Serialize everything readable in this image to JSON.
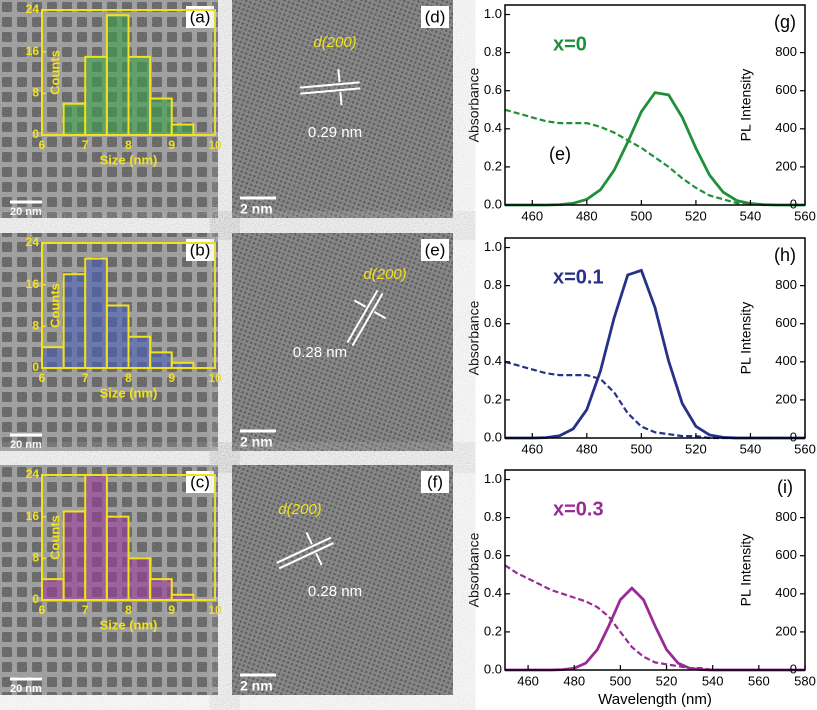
{
  "chart_data": [
    {
      "type": "histogram",
      "panel_label": "(a)",
      "scale_bar": "20 nm",
      "xlabel": "Size (nm)",
      "ylabel": "Counts",
      "bins": [
        6.5,
        7,
        7.5,
        8,
        8.5,
        9,
        9.5
      ],
      "values": [
        6,
        15,
        23,
        15,
        7,
        2
      ],
      "color": "#3aa04a",
      "edge_color": "#f2e21e",
      "xlim": [
        6,
        10
      ],
      "xticks": [
        6,
        7,
        8,
        9,
        10
      ],
      "ylim": [
        0,
        24
      ],
      "yticks": [
        0,
        8,
        16,
        24
      ]
    },
    {
      "type": "histogram",
      "panel_label": "(b)",
      "scale_bar": "20 nm",
      "xlabel": "Size (nm)",
      "ylabel": "Counts",
      "bins": [
        6,
        6.5,
        7,
        7.5,
        8,
        8.5,
        9,
        9.5
      ],
      "values": [
        4,
        18,
        21,
        12,
        6,
        3,
        1
      ],
      "color": "#4a5fb8",
      "edge_color": "#f2e21e",
      "xlim": [
        6,
        10
      ],
      "xticks": [
        6,
        7,
        8,
        9,
        10
      ],
      "ylim": [
        0,
        24
      ],
      "yticks": [
        0,
        8,
        16,
        24
      ]
    },
    {
      "type": "histogram",
      "panel_label": "(c)",
      "scale_bar": "20 nm",
      "xlabel": "Size (nm)",
      "ylabel": "Counts",
      "bins": [
        6,
        6.5,
        7,
        7.5,
        8,
        8.5,
        9,
        9.5
      ],
      "values": [
        4,
        17,
        24,
        16,
        8,
        4,
        1
      ],
      "color": "#9a3a9a",
      "edge_color": "#f2e21e",
      "xlim": [
        6,
        10
      ],
      "xticks": [
        6,
        7,
        8,
        9,
        10
      ],
      "ylim": [
        0,
        24
      ],
      "yticks": [
        0,
        8,
        16,
        24
      ]
    },
    {
      "type": "line",
      "panel_label": "(g)",
      "inset_label": "(e)",
      "annotation": "x=0",
      "color": "#1f8f3a",
      "ylabel": "Absorbance",
      "y2label": "PL Intensity",
      "x": [
        450,
        455,
        460,
        465,
        470,
        475,
        480,
        485,
        490,
        495,
        500,
        505,
        510,
        515,
        520,
        525,
        530,
        535,
        540,
        545,
        550,
        555,
        560
      ],
      "series": [
        {
          "color": "#1f8f3a",
          "dashed": true,
          "values": [
            0.5,
            0.48,
            0.46,
            0.44,
            0.43,
            0.43,
            0.43,
            0.41,
            0.38,
            0.34,
            0.3,
            0.25,
            0.2,
            0.14,
            0.09,
            0.05,
            0.03,
            0.01,
            0.01,
            0,
            0,
            0,
            0
          ]
        },
        {
          "color": "#1f8f3a",
          "dashed": false,
          "axis": "y2",
          "values": [
            0,
            0,
            0,
            0,
            2,
            9,
            30,
            80,
            182,
            330,
            490,
            590,
            578,
            460,
            298,
            157,
            67,
            23,
            7,
            2,
            0,
            0,
            0
          ]
        }
      ],
      "xlim": [
        450,
        560
      ],
      "xticks": [
        460,
        480,
        500,
        520,
        540,
        560
      ],
      "ylim": [
        0,
        1.05
      ],
      "yticks": [
        {
          "value": 0,
          "label": "0.0"
        },
        {
          "value": 0.2,
          "label": "0.2"
        },
        {
          "value": 0.4,
          "label": "0.4"
        },
        {
          "value": 0.6,
          "label": "0.6"
        },
        {
          "value": 0.8,
          "label": "0.8"
        },
        {
          "value": 1,
          "label": "1.0"
        }
      ],
      "y2lim": [
        0,
        1050
      ],
      "y2ticks": [
        0,
        200,
        400,
        600,
        800
      ]
    },
    {
      "type": "line",
      "panel_label": "(h)",
      "annotation": "x=0.1",
      "color": "#26328a",
      "ylabel": "Absorbance",
      "y2label": "PL Intensity",
      "x": [
        450,
        455,
        460,
        465,
        470,
        475,
        480,
        485,
        490,
        495,
        500,
        505,
        510,
        515,
        520,
        525,
        530,
        535,
        540,
        545,
        550,
        555,
        560
      ],
      "series": [
        {
          "color": "#26328a",
          "dashed": true,
          "values": [
            0.4,
            0.38,
            0.36,
            0.34,
            0.33,
            0.33,
            0.33,
            0.31,
            0.24,
            0.13,
            0.06,
            0.03,
            0.02,
            0.01,
            0.01,
            0,
            0,
            0,
            0,
            0,
            0,
            0,
            0
          ]
        },
        {
          "color": "#26328a",
          "dashed": false,
          "axis": "y2",
          "values": [
            0,
            0,
            0,
            2,
            12,
            48,
            149,
            352,
            630,
            856,
            880,
            685,
            404,
            181,
            61,
            16,
            3,
            0,
            0,
            0,
            0,
            0,
            0
          ]
        }
      ],
      "xlim": [
        450,
        560
      ],
      "xticks": [
        460,
        480,
        500,
        520,
        540,
        560
      ],
      "ylim": [
        0,
        1.05
      ],
      "yticks": [
        {
          "value": 0,
          "label": "0.0"
        },
        {
          "value": 0.2,
          "label": "0.2"
        },
        {
          "value": 0.4,
          "label": "0.4"
        },
        {
          "value": 0.6,
          "label": "0.6"
        },
        {
          "value": 0.8,
          "label": "0.8"
        },
        {
          "value": 1,
          "label": "1.0"
        }
      ],
      "y2lim": [
        0,
        1050
      ],
      "y2ticks": [
        0,
        200,
        400,
        600,
        800
      ]
    },
    {
      "type": "line",
      "panel_label": "(i)",
      "annotation": "x=0.3",
      "color": "#9a2a96",
      "ylabel": "Absorbance",
      "y2label": "PL Intensity",
      "xlabel": "Wavelength (nm)",
      "x": [
        450,
        455,
        460,
        465,
        470,
        475,
        480,
        485,
        490,
        495,
        500,
        505,
        510,
        515,
        520,
        525,
        530,
        535,
        540,
        545,
        550,
        555,
        560,
        565,
        570,
        575,
        580
      ],
      "series": [
        {
          "color": "#9a2a96",
          "dashed": true,
          "values": [
            0.55,
            0.51,
            0.48,
            0.45,
            0.42,
            0.4,
            0.38,
            0.36,
            0.33,
            0.28,
            0.2,
            0.12,
            0.07,
            0.04,
            0.03,
            0.02,
            0.01,
            0.01,
            0,
            0,
            0,
            0,
            0,
            0,
            0,
            0,
            0
          ]
        },
        {
          "color": "#9a2a96",
          "dashed": false,
          "axis": "y2",
          "values": [
            0,
            0,
            0,
            0,
            0,
            2,
            9,
            36,
            107,
            232,
            369,
            430,
            369,
            232,
            107,
            36,
            9,
            2,
            0,
            0,
            0,
            0,
            0,
            0,
            0,
            0,
            0
          ]
        }
      ],
      "xlim": [
        450,
        580
      ],
      "xticks": [
        460,
        480,
        500,
        520,
        540,
        560,
        580
      ],
      "ylim": [
        0,
        1.05
      ],
      "yticks": [
        {
          "value": 0,
          "label": "0.0"
        },
        {
          "value": 0.2,
          "label": "0.2"
        },
        {
          "value": 0.4,
          "label": "0.4"
        },
        {
          "value": 0.6,
          "label": "0.6"
        },
        {
          "value": 0.8,
          "label": "0.8"
        },
        {
          "value": 1,
          "label": "1.0"
        }
      ],
      "y2lim": [
        0,
        1050
      ],
      "y2ticks": [
        0,
        200,
        400,
        600,
        800
      ]
    }
  ],
  "images": [
    {
      "panel_label": "(d)",
      "plane_label": "d(200)",
      "spacing": "0.29 nm",
      "scale_bar": "2 nm"
    },
    {
      "panel_label": "(e)",
      "plane_label": "d(200)",
      "spacing": "0.28 nm",
      "scale_bar": "2 nm"
    },
    {
      "panel_label": "(f)",
      "plane_label": "d(200)",
      "spacing": "0.28 nm",
      "scale_bar": "2 nm"
    }
  ]
}
